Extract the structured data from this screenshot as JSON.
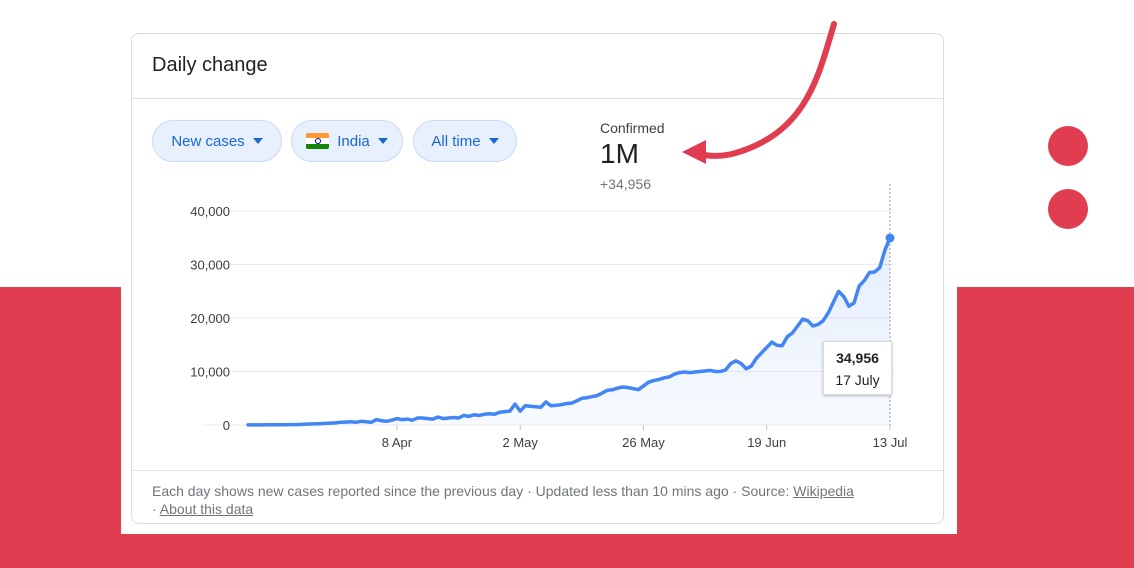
{
  "card": {
    "title": "Daily change",
    "chips": {
      "metric": "New cases",
      "location": "India",
      "range": "All time"
    },
    "summary": {
      "label": "Confirmed",
      "value": "1M",
      "delta": "+34,956"
    },
    "tooltip": {
      "value": "34,956",
      "date": "17 July"
    },
    "footer": {
      "text": "Each day shows new cases reported since the previous day · Updated less than 10 mins ago",
      "source_sep": " · Source: ",
      "source_link": "Wikipedia",
      "about_sep": " · ",
      "about_link": "About this data"
    }
  },
  "colors": {
    "accent_red": "#e03d50",
    "line_blue": "#4285f4",
    "chip_text": "#1967d2"
  },
  "icons": [
    "chevron-down-icon",
    "india-flag-icon",
    "curved-arrow-icon"
  ],
  "chart_data": {
    "type": "area",
    "start_date": "2020-03-10",
    "x_tick_labels": [
      "8 Apr",
      "2 May",
      "26 May",
      "19 Jun",
      "13 Jul"
    ],
    "x_tick_day_index": [
      29,
      53,
      77,
      101,
      125
    ],
    "y_ticks": [
      0,
      10000,
      20000,
      30000,
      40000
    ],
    "y_tick_labels": [
      "0",
      "10,000",
      "20,000",
      "30,000",
      "40,000"
    ],
    "ylim": [
      0,
      40000
    ],
    "grid": true,
    "series": [
      {
        "values": [
          10,
          10,
          20,
          20,
          30,
          40,
          50,
          60,
          70,
          80,
          100,
          150,
          180,
          200,
          250,
          300,
          350,
          400,
          500,
          550,
          600,
          500,
          700,
          600,
          500,
          1000,
          800,
          700,
          900,
          1200,
          1000,
          1100,
          900,
          1300,
          1300,
          1200,
          1100,
          1500,
          1200,
          1300,
          1400,
          1300,
          1800,
          1600,
          1900,
          1800,
          2000,
          2100,
          2000,
          2400,
          2500,
          2600,
          3900,
          2600,
          3600,
          3500,
          3400,
          3300,
          4300,
          3600,
          3700,
          3800,
          4000,
          4100,
          4500,
          5000,
          5100,
          5300,
          5500,
          6000,
          6500,
          6600,
          6900,
          7100,
          7000,
          6800,
          6600,
          7300,
          8000,
          8300,
          8500,
          8800,
          9000,
          9500,
          9800,
          9900,
          9800,
          9900,
          10000,
          10100,
          10200,
          10000,
          10000,
          10300,
          11500,
          12000,
          11500,
          10500,
          11000,
          12500,
          13500,
          14500,
          15500,
          14900,
          14800,
          16500,
          17200,
          18500,
          19800,
          19500,
          18500,
          18800,
          19500,
          21000,
          23000,
          25000,
          24000,
          22200,
          22800,
          26000,
          27000,
          28500,
          28600,
          29400,
          32700,
          34956
        ]
      }
    ]
  }
}
